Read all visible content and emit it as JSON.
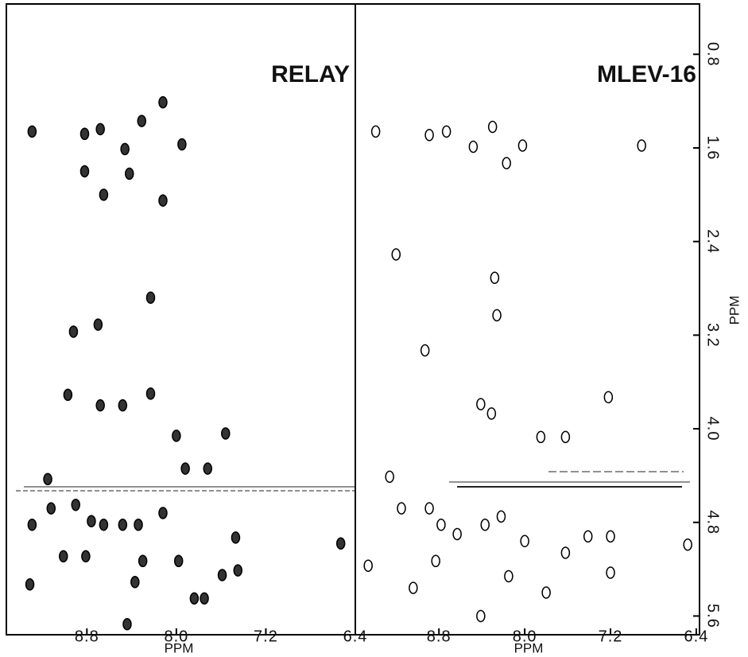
{
  "chart_data": [
    {
      "type": "scatter",
      "title": "RELAY",
      "xlabel": "PPM",
      "x": [
        9.29,
        8.82,
        8.82,
        8.68,
        8.65,
        8.46,
        8.42,
        8.31,
        8.12,
        8.12,
        7.95,
        8.92,
        8.7,
        8.23,
        8.97,
        8.68,
        8.48,
        8.23,
        8.0,
        7.56,
        7.92,
        7.72,
        9.15,
        9.29,
        9.12,
        8.9,
        8.76,
        8.65,
        8.48,
        8.34,
        8.12,
        7.98,
        9.01,
        8.81,
        8.3,
        9.31,
        8.37,
        8.44,
        7.84,
        7.75,
        7.59,
        7.45,
        7.47,
        6.53
      ],
      "y": [
        1.46,
        1.48,
        1.8,
        1.44,
        2.0,
        1.61,
        1.82,
        1.37,
        1.21,
        2.05,
        1.57,
        3.17,
        3.11,
        2.88,
        3.71,
        3.8,
        3.8,
        3.7,
        4.06,
        4.04,
        4.34,
        4.34,
        4.43,
        4.82,
        4.68,
        4.65,
        4.79,
        4.82,
        4.82,
        4.82,
        4.72,
        5.13,
        5.09,
        5.09,
        5.13,
        5.33,
        5.31,
        5.67,
        5.45,
        5.45,
        5.25,
        5.21,
        4.93,
        4.98
      ],
      "xlim": [
        9.52,
        6.4
      ],
      "ylim": [
        0.37,
        5.76
      ],
      "xticks": [
        8.8,
        {
          "value": 8,
          "label": "8.0"
        },
        7.2,
        6.4
      ]
    },
    {
      "type": "scatter",
      "title": "MLEV-16",
      "xlabel": "PPM",
      "ylabel": "PPM",
      "x": [
        9.39,
        8.89,
        8.73,
        8.48,
        8.3,
        8.17,
        8.02,
        6.91,
        9.2,
        8.28,
        8.26,
        8.93,
        8.41,
        8.31,
        7.85,
        7.62,
        7.22,
        9.26,
        9.15,
        8.89,
        8.78,
        8.63,
        8.37,
        8.22,
        8.0,
        7.62,
        7.41,
        7.2,
        6.48,
        8.83,
        8.15,
        7.8,
        8.41,
        7.2,
        9.46,
        9.04
      ],
      "y": [
        1.46,
        1.49,
        1.46,
        1.59,
        1.42,
        1.73,
        1.58,
        1.58,
        2.51,
        2.71,
        3.03,
        3.33,
        3.79,
        3.87,
        4.07,
        4.07,
        3.73,
        4.41,
        4.68,
        4.68,
        4.82,
        4.9,
        4.82,
        4.75,
        4.96,
        5.06,
        4.92,
        4.92,
        4.99,
        5.13,
        5.26,
        5.4,
        5.6,
        5.23,
        5.17,
        5.36
      ],
      "xlim": [
        9.58,
        6.37
      ],
      "ylim": [
        0.37,
        5.76
      ],
      "xticks": [
        8.8,
        {
          "value": 8,
          "label": "8.0"
        },
        7.2,
        6.4
      ],
      "yticks": [
        0.8,
        1.6,
        2.4,
        3.2,
        {
          "value": 4,
          "label": "4.0"
        },
        4.8,
        5.6
      ]
    }
  ]
}
